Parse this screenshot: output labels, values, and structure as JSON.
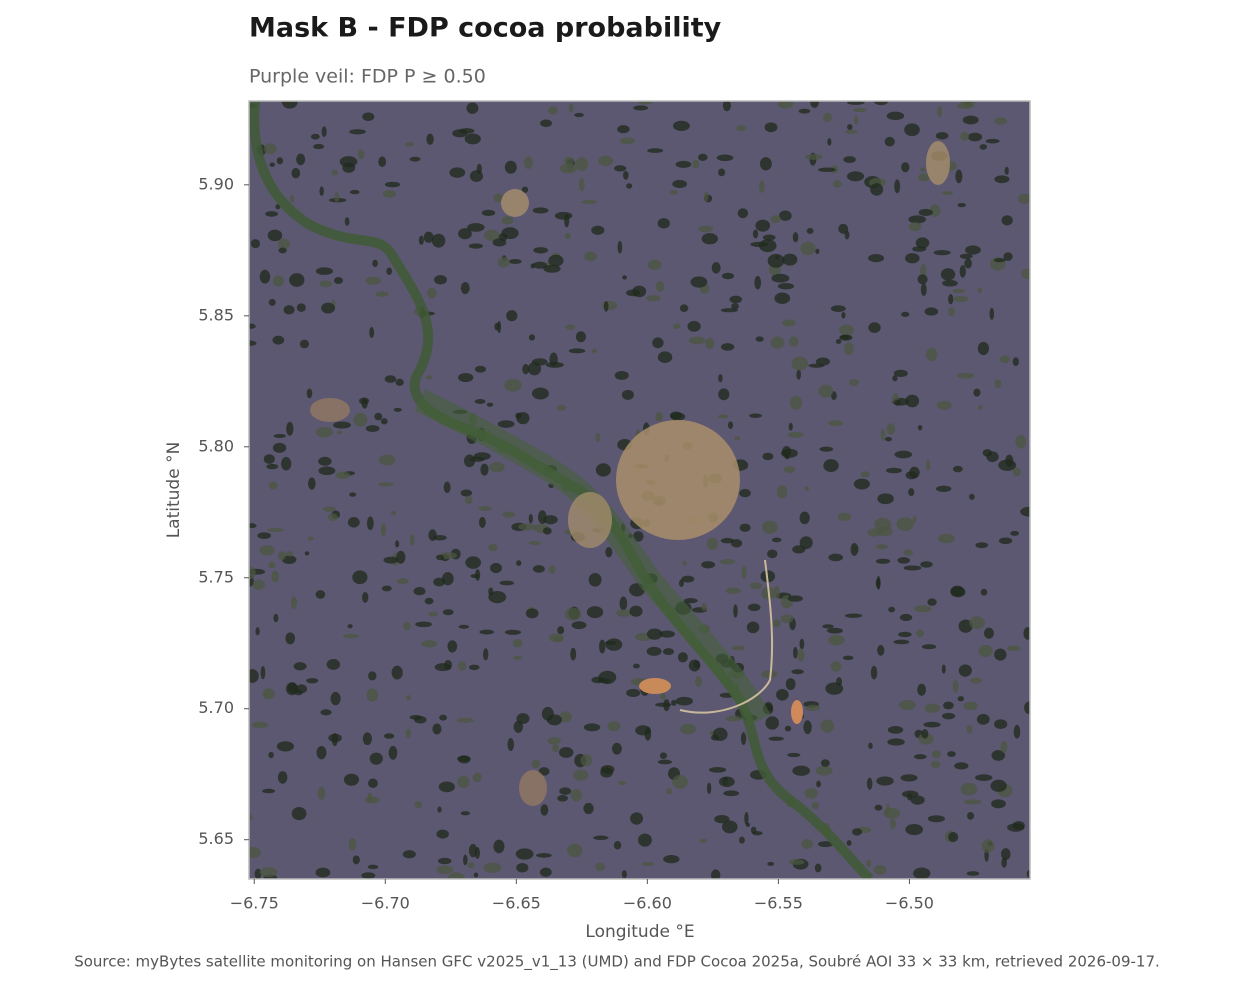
{
  "chart_data": {
    "type": "map",
    "title": "Mask B - FDP cocoa probability",
    "subtitle": "Purple veil: FDP P ≥ 0.50",
    "x_label": "Longitude °E",
    "y_label": "Latitude °N",
    "source": "Source: myBytes satellite monitoring on Hansen GFC v2025_v1_13 (UMD) and FDP Cocoa 2025a, Soubré AOI 33 × 33 km, retrieved 2026-09-17.",
    "xlim": [
      -6.752,
      -6.454
    ],
    "ylim": [
      5.635,
      5.932
    ],
    "xticks": [
      {
        "value": -6.75,
        "label": "−6.75"
      },
      {
        "value": -6.7,
        "label": "−6.70"
      },
      {
        "value": -6.65,
        "label": "−6.65"
      },
      {
        "value": -6.6,
        "label": "−6.60"
      },
      {
        "value": -6.55,
        "label": "−6.55"
      },
      {
        "value": -6.5,
        "label": "−6.50"
      }
    ],
    "yticks": [
      5.65,
      {
        "value": 5.7,
        "label": "5.70"
      },
      5.75,
      {
        "value": 5.8,
        "label": "5.80"
      },
      5.85,
      {
        "value": 5.9,
        "label": "5.90"
      }
    ]
  }
}
